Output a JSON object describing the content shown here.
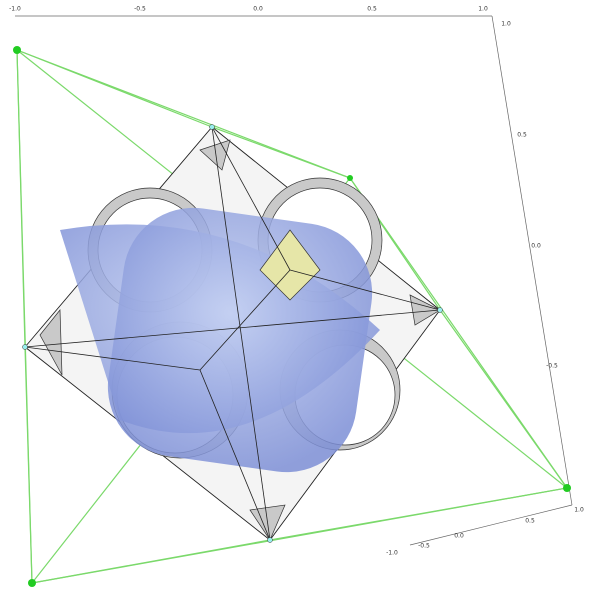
{
  "axes": {
    "top": {
      "ticks": [
        "-1.0",
        "-0.5",
        "0.0",
        "0.5",
        "1.0"
      ]
    },
    "right": {
      "ticks": [
        "1.0",
        "0.5",
        "0.0",
        "-0.5"
      ]
    },
    "bottom": {
      "ticks": [
        "-1.0",
        "-0.5",
        "0.0",
        "0.5",
        "1.0"
      ]
    }
  }
}
